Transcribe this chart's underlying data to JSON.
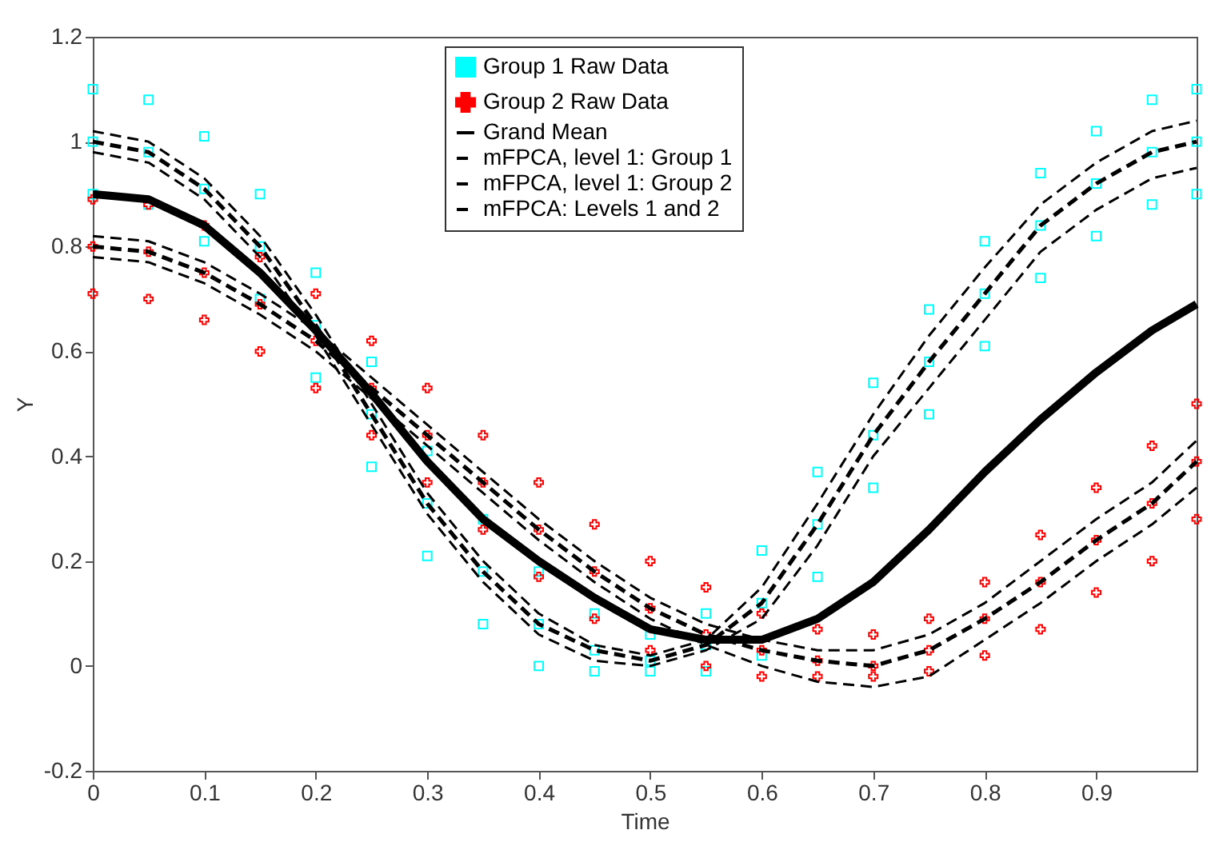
{
  "chart_data": {
    "type": "line",
    "xlabel": "Time",
    "ylabel": "Y",
    "xlim": [
      0,
      0.99
    ],
    "ylim": [
      -0.2,
      1.2
    ],
    "xticks": [
      0,
      0.1,
      0.2,
      0.3,
      0.4,
      0.5,
      0.6,
      0.7,
      0.8,
      0.9
    ],
    "yticks": [
      -0.2,
      0,
      0.2,
      0.4,
      0.6,
      0.8,
      1,
      1.2
    ],
    "grid": false,
    "legend": "top",
    "series": [
      {
        "name": "Group 1 Raw Data",
        "type": "scatter",
        "marker": "square",
        "color": "#00ffff",
        "x": [
          0,
          0.05,
          0.1,
          0.15,
          0.2,
          0.25,
          0.3,
          0.35,
          0.4,
          0.45,
          0.5,
          0.55,
          0.6,
          0.65,
          0.7,
          0.75,
          0.8,
          0.85,
          0.9,
          0.95,
          0.99,
          0,
          0.05,
          0.1,
          0.15,
          0.2,
          0.25,
          0.3,
          0.35,
          0.4,
          0.45,
          0.5,
          0.55,
          0.6,
          0.65,
          0.7,
          0.75,
          0.8,
          0.85,
          0.9,
          0.95,
          0.99,
          0,
          0.05,
          0.1,
          0.15,
          0.2,
          0.25,
          0.3,
          0.35,
          0.4,
          0.45,
          0.5,
          0.55,
          0.6,
          0.65,
          0.7,
          0.75,
          0.8,
          0.85,
          0.9,
          0.95,
          0.99
        ],
        "values": [
          1.1,
          1.08,
          1.01,
          0.9,
          0.75,
          0.58,
          0.41,
          0.28,
          0.18,
          0.1,
          0.06,
          0.1,
          0.22,
          0.37,
          0.54,
          0.68,
          0.81,
          0.94,
          1.02,
          1.08,
          1.1,
          1.0,
          0.98,
          0.91,
          0.8,
          0.65,
          0.48,
          0.31,
          0.18,
          0.08,
          0.03,
          0.01,
          0.04,
          0.12,
          0.27,
          0.44,
          0.58,
          0.71,
          0.84,
          0.92,
          0.98,
          1.0,
          0.9,
          0.88,
          0.81,
          0.7,
          0.55,
          0.38,
          0.21,
          0.08,
          0.0,
          -0.01,
          -0.01,
          -0.01,
          0.02,
          0.17,
          0.34,
          0.48,
          0.61,
          0.74,
          0.82,
          0.88,
          0.9
        ]
      },
      {
        "name": "Group 2 Raw Data",
        "type": "scatter",
        "marker": "cross",
        "color": "#ff0000",
        "x": [
          0,
          0.05,
          0.1,
          0.15,
          0.2,
          0.25,
          0.3,
          0.35,
          0.4,
          0.45,
          0.5,
          0.55,
          0.6,
          0.65,
          0.7,
          0.75,
          0.8,
          0.85,
          0.9,
          0.95,
          0.99,
          0,
          0.05,
          0.1,
          0.15,
          0.2,
          0.25,
          0.3,
          0.35,
          0.4,
          0.45,
          0.5,
          0.55,
          0.6,
          0.65,
          0.7,
          0.75,
          0.8,
          0.85,
          0.9,
          0.95,
          0.99,
          0,
          0.05,
          0.1,
          0.15,
          0.2,
          0.25,
          0.3,
          0.35,
          0.4,
          0.45,
          0.5,
          0.55,
          0.6,
          0.65,
          0.7,
          0.75,
          0.8,
          0.85,
          0.9,
          0.95,
          0.99
        ],
        "values": [
          0.89,
          0.88,
          0.84,
          0.78,
          0.71,
          0.62,
          0.53,
          0.44,
          0.35,
          0.27,
          0.2,
          0.15,
          0.1,
          0.07,
          0.06,
          0.09,
          0.16,
          0.25,
          0.34,
          0.42,
          0.5,
          0.8,
          0.79,
          0.75,
          0.69,
          0.62,
          0.53,
          0.44,
          0.35,
          0.26,
          0.18,
          0.11,
          0.06,
          0.03,
          0.01,
          0.0,
          0.03,
          0.09,
          0.16,
          0.24,
          0.31,
          0.39,
          0.71,
          0.7,
          0.66,
          0.6,
          0.53,
          0.44,
          0.35,
          0.26,
          0.17,
          0.09,
          0.03,
          0.0,
          -0.02,
          -0.02,
          -0.02,
          -0.01,
          0.02,
          0.07,
          0.14,
          0.2,
          0.28
        ]
      },
      {
        "name": "Grand Mean",
        "line_style": "solid",
        "color": "#000000",
        "x": [
          0,
          0.05,
          0.1,
          0.15,
          0.2,
          0.25,
          0.3,
          0.35,
          0.4,
          0.45,
          0.5,
          0.55,
          0.6,
          0.65,
          0.7,
          0.75,
          0.8,
          0.85,
          0.9,
          0.95,
          0.99
        ],
        "values": [
          0.9,
          0.89,
          0.84,
          0.75,
          0.64,
          0.52,
          0.39,
          0.28,
          0.2,
          0.13,
          0.07,
          0.05,
          0.05,
          0.09,
          0.16,
          0.26,
          0.37,
          0.47,
          0.56,
          0.64,
          0.69
        ]
      },
      {
        "name": "mFPCA, level 1: Group 1",
        "line_style": "dashed",
        "color": "#000000",
        "x": [
          0,
          0.05,
          0.1,
          0.15,
          0.2,
          0.25,
          0.3,
          0.35,
          0.4,
          0.45,
          0.5,
          0.55,
          0.6,
          0.65,
          0.7,
          0.75,
          0.8,
          0.85,
          0.9,
          0.95,
          0.99
        ],
        "values": [
          1.0,
          0.98,
          0.91,
          0.8,
          0.65,
          0.48,
          0.31,
          0.18,
          0.08,
          0.03,
          0.01,
          0.04,
          0.12,
          0.27,
          0.44,
          0.58,
          0.71,
          0.84,
          0.92,
          0.98,
          1.0
        ]
      },
      {
        "name": "mFPCA, level 1: Group 2",
        "line_style": "dashed",
        "color": "#000000",
        "x": [
          0,
          0.05,
          0.1,
          0.15,
          0.2,
          0.25,
          0.3,
          0.35,
          0.4,
          0.45,
          0.5,
          0.55,
          0.6,
          0.65,
          0.7,
          0.75,
          0.8,
          0.85,
          0.9,
          0.95,
          0.99
        ],
        "values": [
          0.8,
          0.79,
          0.75,
          0.69,
          0.62,
          0.53,
          0.44,
          0.35,
          0.26,
          0.18,
          0.11,
          0.06,
          0.03,
          0.01,
          0.0,
          0.03,
          0.09,
          0.16,
          0.24,
          0.31,
          0.39
        ]
      },
      {
        "name": "mFPCA: Levels 1 and 2",
        "line_style": "dashed",
        "color": "#000000",
        "x": [
          0,
          0.05,
          0.1,
          0.15,
          0.2,
          0.25,
          0.3,
          0.35,
          0.4,
          0.45,
          0.5,
          0.55,
          0.6,
          0.65,
          0.7,
          0.75,
          0.8,
          0.85,
          0.9,
          0.95,
          0.99
        ],
        "values": [
          1.02,
          1.0,
          0.93,
          0.82,
          0.67,
          0.5,
          0.33,
          0.2,
          0.1,
          0.04,
          0.02,
          0.05,
          0.15,
          0.31,
          0.48,
          0.63,
          0.76,
          0.88,
          0.96,
          1.02,
          1.04
        ]
      },
      {
        "type": "line",
        "line_style": "dashed",
        "color": "#000000",
        "x": [
          0,
          0.05,
          0.1,
          0.15,
          0.2,
          0.25,
          0.3,
          0.35,
          0.4,
          0.45,
          0.5,
          0.55,
          0.6,
          0.65,
          0.7,
          0.75,
          0.8,
          0.85,
          0.9,
          0.95,
          0.99
        ],
        "values": [
          0.98,
          0.96,
          0.89,
          0.78,
          0.63,
          0.46,
          0.29,
          0.16,
          0.06,
          0.01,
          0.0,
          0.03,
          0.09,
          0.23,
          0.4,
          0.53,
          0.66,
          0.79,
          0.87,
          0.93,
          0.95
        ]
      },
      {
        "type": "line",
        "line_style": "dashed",
        "color": "#000000",
        "x": [
          0,
          0.05,
          0.1,
          0.15,
          0.2,
          0.25,
          0.3,
          0.35,
          0.4,
          0.45,
          0.5,
          0.55,
          0.6,
          0.65,
          0.7,
          0.75,
          0.8,
          0.85,
          0.9,
          0.95,
          0.99
        ],
        "values": [
          0.82,
          0.81,
          0.77,
          0.71,
          0.64,
          0.55,
          0.46,
          0.37,
          0.28,
          0.2,
          0.13,
          0.08,
          0.05,
          0.03,
          0.03,
          0.06,
          0.12,
          0.2,
          0.28,
          0.35,
          0.43
        ]
      },
      {
        "type": "line",
        "line_style": "dashed",
        "color": "#000000",
        "x": [
          0,
          0.05,
          0.1,
          0.15,
          0.2,
          0.25,
          0.3,
          0.35,
          0.4,
          0.45,
          0.5,
          0.55,
          0.6,
          0.65,
          0.7,
          0.75,
          0.8,
          0.85,
          0.9,
          0.95,
          0.99
        ],
        "values": [
          0.78,
          0.77,
          0.73,
          0.67,
          0.6,
          0.51,
          0.42,
          0.33,
          0.24,
          0.16,
          0.09,
          0.04,
          0.0,
          -0.03,
          -0.04,
          -0.02,
          0.05,
          0.12,
          0.2,
          0.27,
          0.34
        ]
      }
    ]
  }
}
